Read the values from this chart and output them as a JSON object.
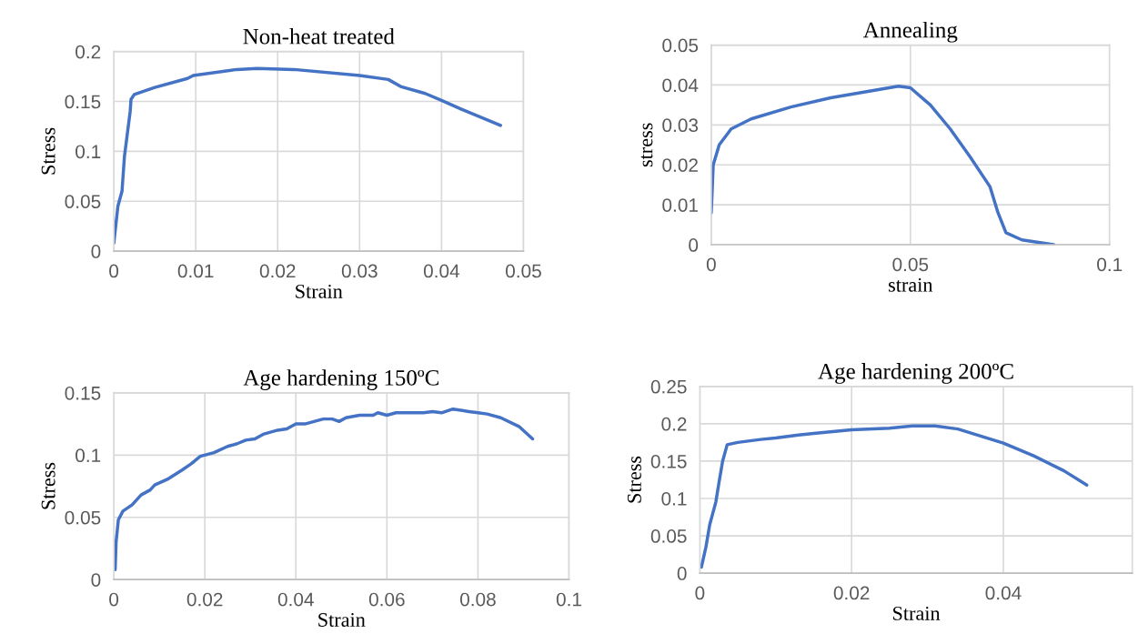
{
  "chart_data": [
    {
      "type": "line",
      "title": "Non-heat treated",
      "xlabel": "Strain",
      "ylabel": "Stress",
      "xlim": [
        0,
        0.05
      ],
      "xticks": [
        0,
        0.01,
        0.02,
        0.03,
        0.04,
        0.05
      ],
      "ylim": [
        0,
        0.2
      ],
      "yticks": [
        0,
        0.05,
        0.1,
        0.15,
        0.2
      ],
      "grid": true,
      "series": [
        {
          "color": "#4472c4",
          "x": [
            0,
            0.0003,
            0.0005,
            0.001,
            0.0013,
            0.002,
            0.0021,
            0.0025,
            0.005,
            0.009,
            0.0097,
            0.015,
            0.0175,
            0.022,
            0.03,
            0.0335,
            0.035,
            0.038,
            0.04,
            0.0425,
            0.0472
          ],
          "values": [
            0.008,
            0.03,
            0.045,
            0.06,
            0.095,
            0.14,
            0.152,
            0.157,
            0.164,
            0.173,
            0.176,
            0.182,
            0.183,
            0.182,
            0.176,
            0.172,
            0.165,
            0.158,
            0.151,
            0.142,
            0.126
          ]
        }
      ]
    },
    {
      "type": "line",
      "title": "Annealing",
      "xlabel": "strain",
      "ylabel": "stress",
      "xlim": [
        0,
        0.1
      ],
      "xticks": [
        0,
        0.05,
        0.1
      ],
      "ylim": [
        0,
        0.05
      ],
      "yticks": [
        0,
        0.01,
        0.02,
        0.03,
        0.04,
        0.05
      ],
      "grid": true,
      "series": [
        {
          "color": "#4472c4",
          "x": [
            0,
            0.0005,
            0.002,
            0.005,
            0.01,
            0.02,
            0.03,
            0.04,
            0.047,
            0.05,
            0.055,
            0.06,
            0.065,
            0.07,
            0.072,
            0.074,
            0.078,
            0.086
          ],
          "values": [
            0.008,
            0.02,
            0.025,
            0.029,
            0.0315,
            0.0345,
            0.0368,
            0.0385,
            0.0397,
            0.0393,
            0.035,
            0.029,
            0.022,
            0.0145,
            0.008,
            0.003,
            0.0012,
            0
          ]
        }
      ]
    },
    {
      "type": "line",
      "title": "Age hardening 150ºC",
      "xlabel": "Strain",
      "ylabel": "Stress",
      "xlim": [
        0,
        0.1
      ],
      "xticks": [
        0,
        0.02,
        0.04,
        0.06,
        0.08,
        0.1
      ],
      "ylim": [
        0,
        0.15
      ],
      "yticks": [
        0,
        0.05,
        0.1,
        0.15
      ],
      "grid": true,
      "series": [
        {
          "color": "#4472c4",
          "x": [
            0.0003,
            0.0005,
            0.001,
            0.002,
            0.004,
            0.006,
            0.008,
            0.009,
            0.012,
            0.015,
            0.017,
            0.019,
            0.022,
            0.025,
            0.027,
            0.029,
            0.031,
            0.033,
            0.036,
            0.038,
            0.04,
            0.042,
            0.046,
            0.048,
            0.0495,
            0.051,
            0.054,
            0.057,
            0.058,
            0.06,
            0.062,
            0.068,
            0.07,
            0.072,
            0.0745,
            0.078,
            0.08,
            0.082,
            0.085,
            0.089,
            0.092
          ],
          "values": [
            0.008,
            0.03,
            0.048,
            0.055,
            0.06,
            0.068,
            0.072,
            0.076,
            0.081,
            0.088,
            0.093,
            0.099,
            0.102,
            0.107,
            0.109,
            0.112,
            0.113,
            0.117,
            0.12,
            0.121,
            0.125,
            0.125,
            0.129,
            0.129,
            0.127,
            0.13,
            0.132,
            0.132,
            0.134,
            0.132,
            0.134,
            0.134,
            0.135,
            0.134,
            0.137,
            0.135,
            0.134,
            0.133,
            0.13,
            0.123,
            0.113
          ]
        }
      ]
    },
    {
      "type": "line",
      "title": "Age hardening 200ºC",
      "xlabel": "Strain",
      "ylabel": "Stress",
      "xlim": [
        0,
        0.057
      ],
      "xticks": [
        0,
        0.02,
        0.04
      ],
      "ylim": [
        0,
        0.25
      ],
      "yticks": [
        0,
        0.05,
        0.1,
        0.15,
        0.2,
        0.25
      ],
      "grid": true,
      "series": [
        {
          "color": "#4472c4",
          "x": [
            0.0002,
            0.0008,
            0.0013,
            0.0021,
            0.0025,
            0.003,
            0.0036,
            0.005,
            0.008,
            0.01,
            0.013,
            0.015,
            0.02,
            0.025,
            0.028,
            0.031,
            0.034,
            0.04,
            0.044,
            0.048,
            0.051
          ],
          "values": [
            0.008,
            0.035,
            0.065,
            0.095,
            0.12,
            0.15,
            0.172,
            0.175,
            0.179,
            0.181,
            0.185,
            0.187,
            0.192,
            0.194,
            0.197,
            0.197,
            0.193,
            0.174,
            0.157,
            0.137,
            0.118
          ]
        }
      ]
    }
  ]
}
